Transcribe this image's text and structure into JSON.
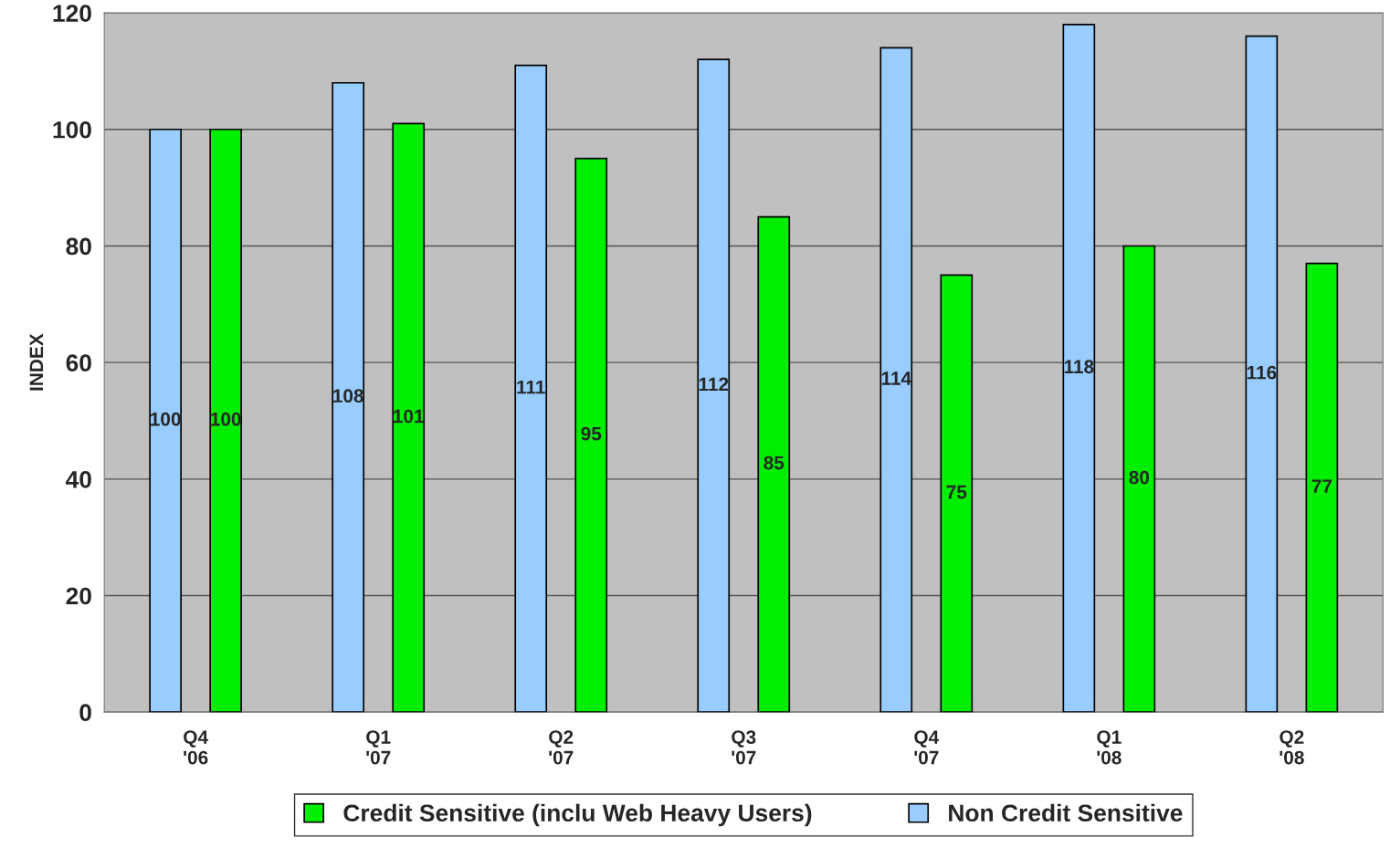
{
  "chart_data": {
    "type": "bar",
    "ylabel": "INDEX",
    "categories": [
      "Q4\n'06",
      "Q1\n'07",
      "Q2\n'07",
      "Q3\n'07",
      "Q4\n'07",
      "Q1\n'08",
      "Q2\n'08"
    ],
    "series": [
      {
        "name": "Non Credit Sensitive",
        "color": "#99ccff",
        "values": [
          100,
          108,
          111,
          112,
          114,
          118,
          116
        ]
      },
      {
        "name": "Credit Sensitive (inclu Web Heavy Users)",
        "color": "#00ee00",
        "values": [
          100,
          101,
          95,
          85,
          75,
          80,
          77
        ]
      }
    ],
    "ylim": [
      0,
      120
    ],
    "yticks": [
      0,
      20,
      40,
      60,
      80,
      100,
      120
    ],
    "grid": "y",
    "legend": "bottom",
    "data_labels": true
  }
}
